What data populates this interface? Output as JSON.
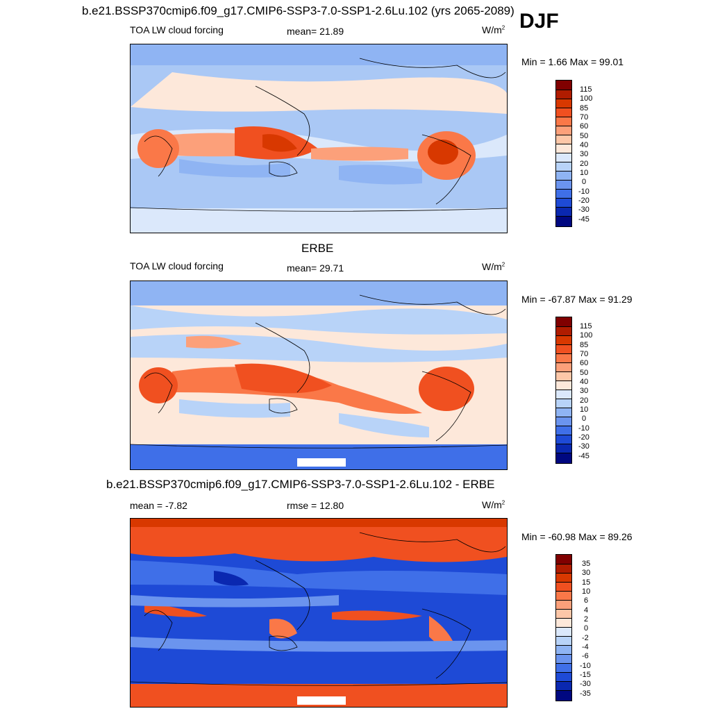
{
  "season": "DJF",
  "panels": [
    {
      "id": "model",
      "title": "b.e21.BSSP370cmip6.f09_g17.CMIP6-SSP3-7.0-SSP1-2.6Lu.102 (yrs 2065-2089)",
      "left_label": "TOA LW cloud forcing",
      "center_label": "mean=  21.89",
      "units": "W/m",
      "units_sup": "2",
      "minmax": "Min =   1.66 Max =  99.01",
      "levels": [
        "115",
        "100",
        "85",
        "70",
        "60",
        "50",
        "40",
        "30",
        "20",
        "10",
        "0",
        "-10",
        "-20",
        "-30",
        "-45"
      ],
      "colors": [
        "#800000",
        "#b01c00",
        "#d83800",
        "#f05020",
        "#fa7848",
        "#fca07a",
        "#fdc7a8",
        "#fde8da",
        "#dbe8fb",
        "#b8d3f8",
        "#8fb4f3",
        "#6b94ee",
        "#3f6fe8",
        "#1e4ad6",
        "#0a28b0",
        "#000880"
      ]
    },
    {
      "id": "obs",
      "title": "ERBE",
      "left_label": "TOA LW cloud forcing",
      "center_label": "mean=  29.71",
      "units": "W/m",
      "units_sup": "2",
      "minmax": "Min = -67.87 Max =  91.29",
      "levels": [
        "115",
        "100",
        "85",
        "70",
        "60",
        "50",
        "40",
        "30",
        "20",
        "10",
        "0",
        "-10",
        "-20",
        "-30",
        "-45"
      ],
      "colors": [
        "#800000",
        "#b01c00",
        "#d83800",
        "#f05020",
        "#fa7848",
        "#fca07a",
        "#fdc7a8",
        "#fde8da",
        "#dbe8fb",
        "#b8d3f8",
        "#8fb4f3",
        "#6b94ee",
        "#3f6fe8",
        "#1e4ad6",
        "#0a28b0",
        "#000880"
      ]
    },
    {
      "id": "diff",
      "title": "b.e21.BSSP370cmip6.f09_g17.CMIP6-SSP3-7.0-SSP1-2.6Lu.102 - ERBE",
      "left_label": "mean =  -7.82",
      "center_label": "rmse =  12.80",
      "units": "W/m",
      "units_sup": "2",
      "minmax": "Min = -60.98 Max =  89.26",
      "levels": [
        "35",
        "30",
        "15",
        "10",
        "6",
        "4",
        "2",
        "0",
        "-2",
        "-4",
        "-6",
        "-10",
        "-15",
        "-30",
        "-35"
      ],
      "colors": [
        "#800000",
        "#b01c00",
        "#d83800",
        "#f05020",
        "#fa7848",
        "#fca07a",
        "#fdc7a8",
        "#fde8da",
        "#dbe8fb",
        "#b8d3f8",
        "#8fb4f3",
        "#6b94ee",
        "#3f6fe8",
        "#1e4ad6",
        "#0a28b0",
        "#000880"
      ]
    }
  ]
}
